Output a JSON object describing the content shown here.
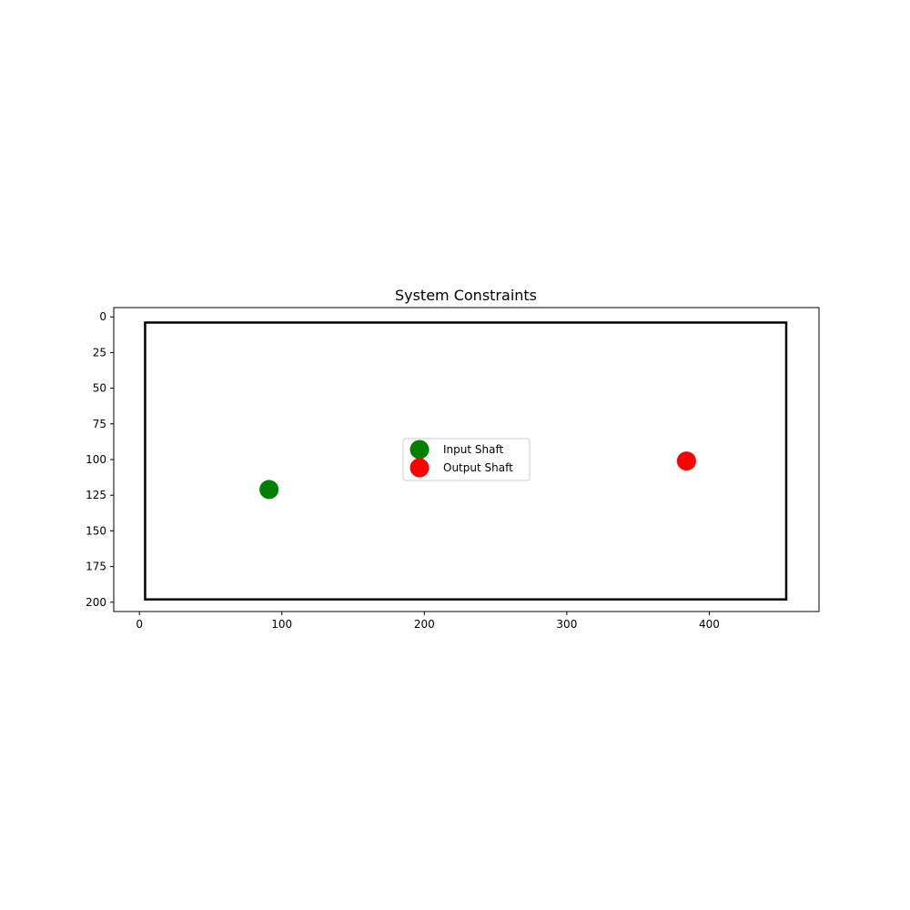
{
  "chart_data": {
    "type": "scatter",
    "title": "System Constraints",
    "xlabel": "",
    "ylabel": "",
    "xlim": [
      -18,
      477
    ],
    "ylim": [
      206.5,
      -6.5
    ],
    "y_inverted": true,
    "grid": false,
    "xticks": [
      0,
      100,
      200,
      300,
      400
    ],
    "yticks": [
      0,
      25,
      50,
      75,
      100,
      125,
      150,
      175,
      200
    ],
    "boundary": {
      "x0": 4,
      "y0": 4,
      "x1": 454,
      "y1": 198,
      "color": "#000000"
    },
    "series": [
      {
        "name": "Input Shaft",
        "color": "#008000",
        "points": [
          [
            91,
            121
          ]
        ]
      },
      {
        "name": "Output Shaft",
        "color": "#ff0000",
        "points": [
          [
            384,
            101
          ]
        ]
      }
    ],
    "legend": {
      "placement": "center"
    }
  }
}
